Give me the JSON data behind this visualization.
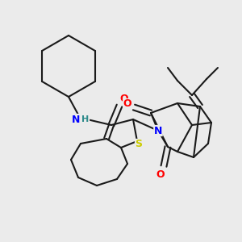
{
  "bg_color": "#ebebeb",
  "bond_color": "#1a1a1a",
  "atom_colors": {
    "N": "#0000ff",
    "H": "#2e8b8b",
    "O": "#ff0000",
    "S": "#cccc00"
  },
  "figsize": [
    3.0,
    3.0
  ],
  "dpi": 100
}
